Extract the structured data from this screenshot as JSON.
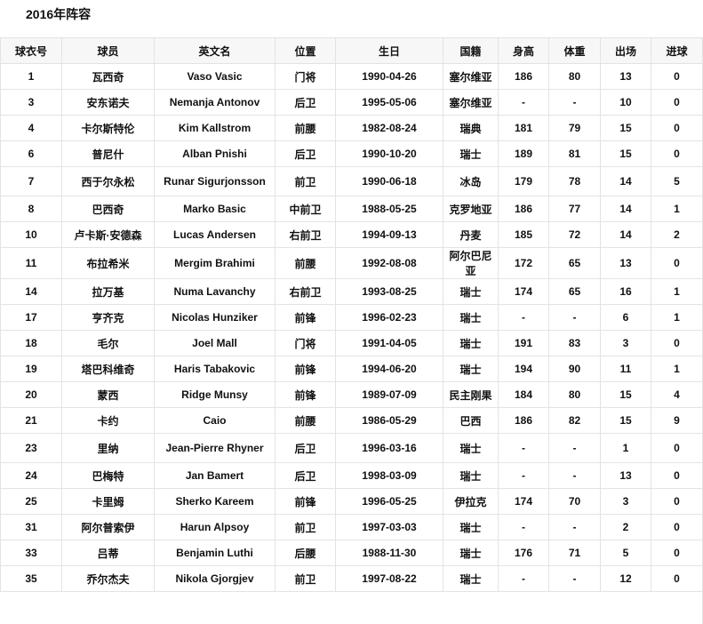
{
  "title": "2016年阵容",
  "columns": [
    "球衣号",
    "球员",
    "英文名",
    "位置",
    "生日",
    "国籍",
    "身高",
    "体重",
    "出场",
    "进球"
  ],
  "rows": [
    [
      "1",
      "瓦西奇",
      "Vaso Vasic",
      "门将",
      "1990-04-26",
      "塞尔维亚",
      "186",
      "80",
      "13",
      "0"
    ],
    [
      "3",
      "安东诺夫",
      "Nemanja Antonov",
      "后卫",
      "1995-05-06",
      "塞尔维亚",
      "-",
      "-",
      "10",
      "0"
    ],
    [
      "4",
      "卡尔斯特伦",
      "Kim Kallstrom",
      "前腰",
      "1982-08-24",
      "瑞典",
      "181",
      "79",
      "15",
      "0"
    ],
    [
      "6",
      "普尼什",
      "Alban Pnishi",
      "后卫",
      "1990-10-20",
      "瑞士",
      "189",
      "81",
      "15",
      "0"
    ],
    [
      "7",
      "西于尔永松",
      "Runar Sigurjonsson",
      "前卫",
      "1990-06-18",
      "冰岛",
      "179",
      "78",
      "14",
      "5"
    ],
    [
      "8",
      "巴西奇",
      "Marko Basic",
      "中前卫",
      "1988-05-25",
      "克罗地亚",
      "186",
      "77",
      "14",
      "1"
    ],
    [
      "10",
      "卢卡斯·安德森",
      "Lucas Andersen",
      "右前卫",
      "1994-09-13",
      "丹麦",
      "185",
      "72",
      "14",
      "2"
    ],
    [
      "11",
      "布拉希米",
      "Mergim Brahimi",
      "前腰",
      "1992-08-08",
      "阿尔巴尼亚",
      "172",
      "65",
      "13",
      "0"
    ],
    [
      "14",
      "拉万基",
      "Numa Lavanchy",
      "右前卫",
      "1993-08-25",
      "瑞士",
      "174",
      "65",
      "16",
      "1"
    ],
    [
      "17",
      "亨齐克",
      "Nicolas Hunziker",
      "前锋",
      "1996-02-23",
      "瑞士",
      "-",
      "-",
      "6",
      "1"
    ],
    [
      "18",
      "毛尔",
      "Joel Mall",
      "门将",
      "1991-04-05",
      "瑞士",
      "191",
      "83",
      "3",
      "0"
    ],
    [
      "19",
      "塔巴科维奇",
      "Haris Tabakovic",
      "前锋",
      "1994-06-20",
      "瑞士",
      "194",
      "90",
      "11",
      "1"
    ],
    [
      "20",
      "蒙西",
      "Ridge Munsy",
      "前锋",
      "1989-07-09",
      "民主刚果",
      "184",
      "80",
      "15",
      "4"
    ],
    [
      "21",
      "卡约",
      "Caio",
      "前腰",
      "1986-05-29",
      "巴西",
      "186",
      "82",
      "15",
      "9"
    ],
    [
      "23",
      "里纳",
      "Jean-Pierre Rhyner",
      "后卫",
      "1996-03-16",
      "瑞士",
      "-",
      "-",
      "1",
      "0"
    ],
    [
      "24",
      "巴梅特",
      "Jan Bamert",
      "后卫",
      "1998-03-09",
      "瑞士",
      "-",
      "-",
      "13",
      "0"
    ],
    [
      "25",
      "卡里姆",
      "Sherko Kareem",
      "前锋",
      "1996-05-25",
      "伊拉克",
      "174",
      "70",
      "3",
      "0"
    ],
    [
      "31",
      "阿尔普索伊",
      "Harun Alpsoy",
      "前卫",
      "1997-03-03",
      "瑞士",
      "-",
      "-",
      "2",
      "0"
    ],
    [
      "33",
      "吕蒂",
      "Benjamin Luthi",
      "后腰",
      "1988-11-30",
      "瑞士",
      "176",
      "71",
      "5",
      "0"
    ],
    [
      "35",
      "乔尔杰夫",
      "Nikola Gjorgjev",
      "前卫",
      "1997-08-22",
      "瑞士",
      "-",
      "-",
      "12",
      "0"
    ]
  ]
}
